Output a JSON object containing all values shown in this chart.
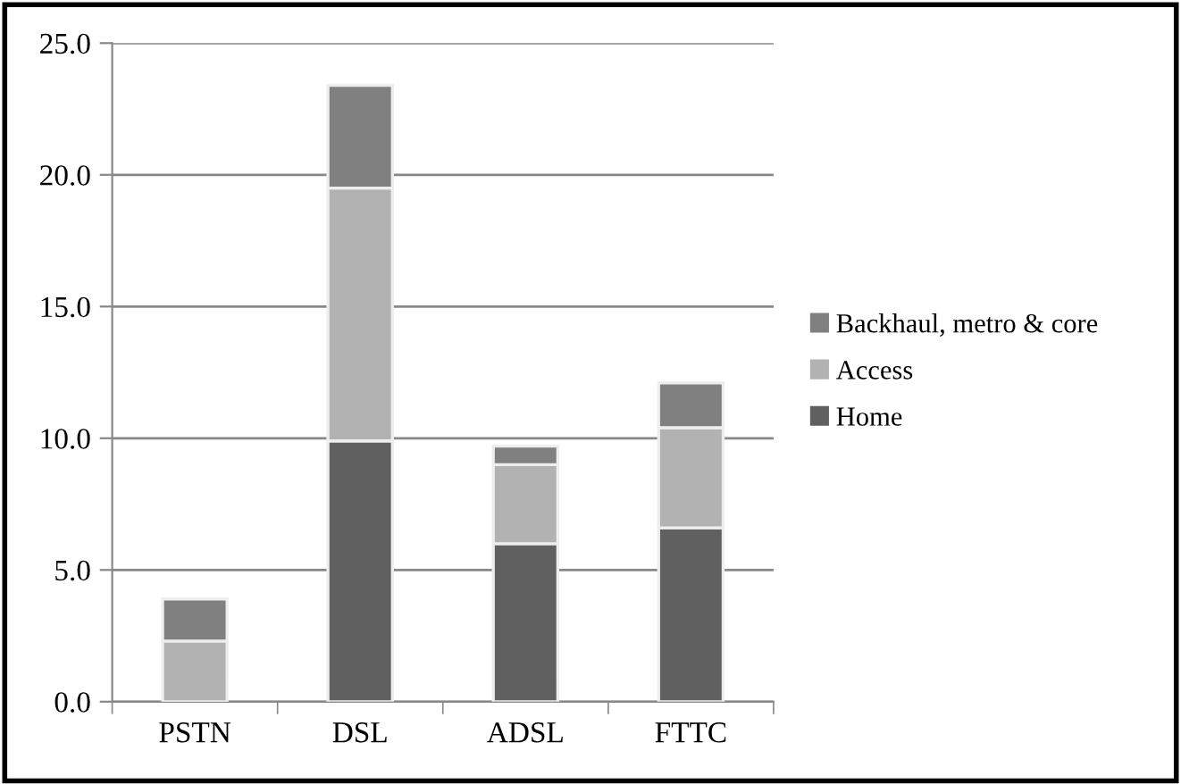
{
  "chart_data": {
    "type": "bar",
    "stacked": true,
    "categories": [
      "PSTN",
      "DSL",
      "ADSL",
      "FTTC"
    ],
    "series": [
      {
        "name": "Home",
        "color": "#606060",
        "values": [
          0,
          9.9,
          6.0,
          6.6
        ]
      },
      {
        "name": "Access",
        "color": "#b2b2b2",
        "values": [
          2.3,
          9.6,
          3.0,
          3.8
        ]
      },
      {
        "name": "Backhaul, metro & core",
        "color": "#808080",
        "values": [
          1.6,
          3.9,
          0.7,
          1.7
        ]
      }
    ],
    "ylim": [
      0,
      25
    ],
    "yticks": [
      {
        "value": 0,
        "label": "0.0"
      },
      {
        "value": 5,
        "label": "5.0"
      },
      {
        "value": 10,
        "label": "10.0"
      },
      {
        "value": 15,
        "label": "15.0"
      },
      {
        "value": 20,
        "label": "20.0"
      },
      {
        "value": 25,
        "label": "25.0"
      }
    ],
    "grid": "y",
    "legend": "right"
  }
}
